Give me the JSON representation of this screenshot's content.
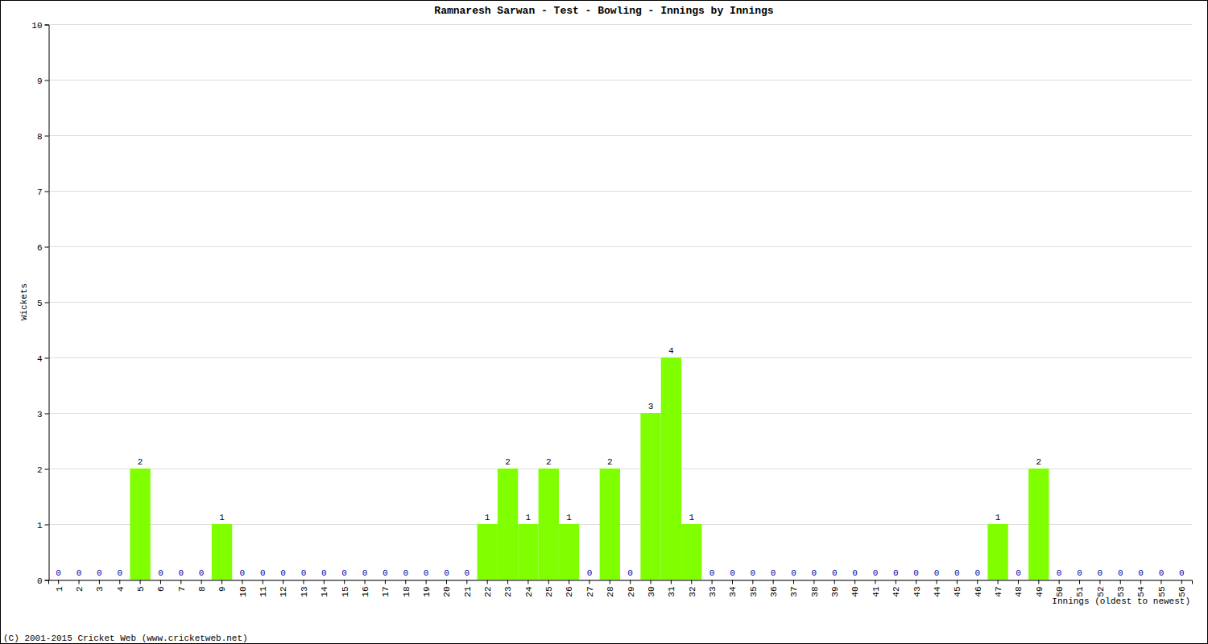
{
  "chart_data": {
    "type": "bar",
    "title": "Ramnaresh Sarwan - Test - Bowling - Innings by Innings",
    "x_label": "Innings (oldest to newest)",
    "y_label": "Wickets",
    "annotations": [
      "(C) 2001-2015 Cricket Web (www.cricketweb.net)"
    ],
    "categories": [
      "1",
      "2",
      "3",
      "4",
      "5",
      "6",
      "7",
      "8",
      "9",
      "10",
      "11",
      "12",
      "13",
      "14",
      "15",
      "16",
      "17",
      "18",
      "19",
      "20",
      "21",
      "22",
      "23",
      "24",
      "25",
      "26",
      "27",
      "28",
      "29",
      "30",
      "31",
      "32",
      "33",
      "34",
      "35",
      "36",
      "37",
      "38",
      "39",
      "40",
      "41",
      "42",
      "43",
      "44",
      "45",
      "46",
      "47",
      "48",
      "49",
      "50",
      "51",
      "52",
      "53",
      "54",
      "55",
      "56"
    ],
    "values": [
      0,
      0,
      0,
      0,
      2,
      0,
      0,
      0,
      1,
      0,
      0,
      0,
      0,
      0,
      0,
      0,
      0,
      0,
      0,
      0,
      0,
      1,
      2,
      1,
      2,
      1,
      0,
      2,
      0,
      3,
      4,
      1,
      0,
      0,
      0,
      0,
      0,
      0,
      0,
      0,
      0,
      0,
      0,
      0,
      0,
      0,
      1,
      0,
      2,
      0,
      0,
      0,
      0,
      0,
      0,
      0
    ],
    "color": "#80ff00",
    "ylim": [
      0,
      10
    ],
    "yticks": [
      0,
      1,
      2,
      3,
      4,
      5,
      6,
      7,
      8,
      9,
      10
    ],
    "grid": true,
    "data_labels": true
  }
}
